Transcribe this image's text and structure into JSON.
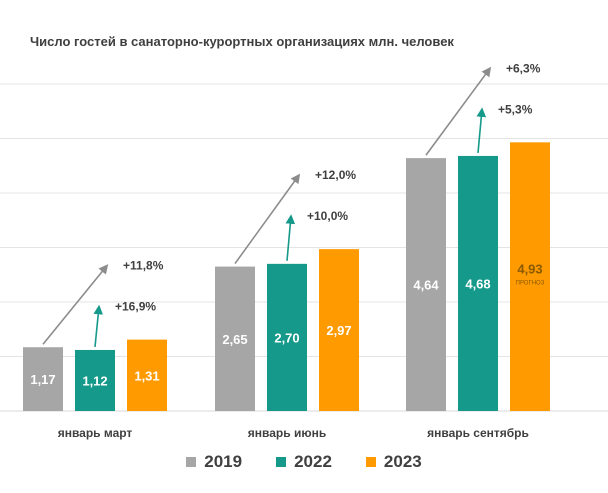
{
  "chart_data": {
    "type": "bar",
    "title": "Число гостей в санаторно-курортных организациях млн. человек",
    "categories": [
      "январь март",
      "январь июнь",
      "январь сентябрь"
    ],
    "series": [
      {
        "name": "2019",
        "color": "#a6a6a6",
        "values": [
          1.17,
          2.65,
          4.64
        ],
        "labels": [
          "1,17",
          "2,65",
          "4,64"
        ]
      },
      {
        "name": "2022",
        "color": "#14998a",
        "values": [
          1.12,
          2.7,
          4.68
        ],
        "labels": [
          "1,12",
          "2,70",
          "4,68"
        ]
      },
      {
        "name": "2023",
        "color": "#ff9a00",
        "values": [
          1.31,
          2.97,
          4.93
        ],
        "labels": [
          "1,31",
          "2,97",
          "4,93"
        ]
      }
    ],
    "forecast_note": {
      "category_index": 2,
      "series_index": 2,
      "text": "ПРОГНОЗ"
    },
    "growth_annotations": [
      {
        "category_index": 0,
        "from_series": 0,
        "text": "+11,8%",
        "color": "#8c8c8c"
      },
      {
        "category_index": 0,
        "from_series": 1,
        "text": "+16,9%",
        "color": "#14998a"
      },
      {
        "category_index": 1,
        "from_series": 0,
        "text": "+12,0%",
        "color": "#8c8c8c"
      },
      {
        "category_index": 1,
        "from_series": 1,
        "text": "+10,0%",
        "color": "#14998a"
      },
      {
        "category_index": 2,
        "from_series": 0,
        "text": "+6,3%",
        "color": "#8c8c8c"
      },
      {
        "category_index": 2,
        "from_series": 1,
        "text": "+5,3%",
        "color": "#14998a"
      }
    ],
    "ylim": [
      0,
      6
    ],
    "grid": true,
    "legend_position": "bottom"
  }
}
